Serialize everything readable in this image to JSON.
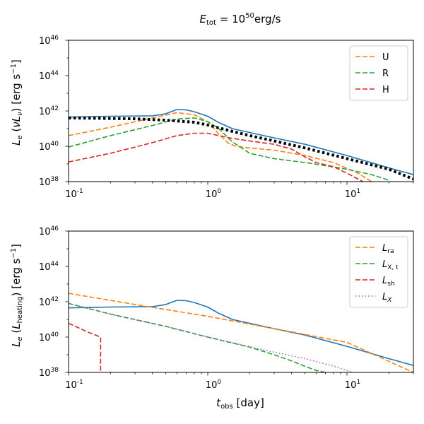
{
  "title": "E_tot = 10^50 erg/s",
  "title_parts": {
    "lhs": "E",
    "lhs_sub": "tot",
    "eq": " = 10",
    "exp": "50",
    "unit": "erg/s"
  },
  "chart_data": [
    {
      "type": "line",
      "panel": "top",
      "xscale": "log",
      "yscale": "log",
      "xlim": [
        0.1,
        30
      ],
      "ylim": [
        1e+38,
        1e+46
      ],
      "ylabel": "L_e (νL_ν) [erg s^-1]",
      "xticks": [
        0.1,
        1,
        10
      ],
      "yticks": [
        1e+38,
        1e+40,
        1e+42,
        1e+44,
        1e+46
      ],
      "legend": "top-right",
      "series": [
        {
          "name": "total",
          "color": "#1f77b4",
          "style": "solid",
          "in_legend": false,
          "x": [
            0.1,
            0.2,
            0.4,
            0.5,
            0.6,
            0.7,
            0.8,
            1.0,
            1.2,
            1.5,
            2.0,
            3.0,
            5.0,
            10.0,
            20.0,
            30.0
          ],
          "y": [
            4.5e+41,
            5e+41,
            5.3e+41,
            7e+41,
            1.2e+42,
            1.15e+42,
            9e+41,
            5e+41,
            2.2e+41,
            1e+41,
            6e+40,
            3e+40,
            1.3e+40,
            3e+39,
            6e+38,
            2.5e+38
          ]
        },
        {
          "name": "U",
          "color": "#ff7f0e",
          "style": "dashed",
          "in_legend": true,
          "x": [
            0.1,
            0.2,
            0.4,
            0.6,
            0.8,
            1.0,
            1.2,
            1.4,
            1.6,
            2.0,
            3.0,
            5.0,
            8.0,
            12.0,
            15.0
          ],
          "y": [
            4e+40,
            1.2e+41,
            4e+41,
            8e+41,
            6e+41,
            2.5e+41,
            5e+40,
            1.5e+40,
            1e+40,
            8e+39,
            6e+39,
            3e+39,
            1.2e+39,
            3e+38,
            1e+38
          ]
        },
        {
          "name": "R",
          "color": "#2ca02c",
          "style": "dashed",
          "in_legend": true,
          "x": [
            0.1,
            0.2,
            0.4,
            0.6,
            0.8,
            1.0,
            1.2,
            1.5,
            2.0,
            3.0,
            4.0,
            5.0,
            7.0,
            10.0,
            15.0,
            20.0
          ],
          "y": [
            9e+39,
            4e+40,
            1.5e+41,
            3.5e+41,
            4e+41,
            2.5e+41,
            1e+41,
            1.8e+40,
            4e+39,
            2e+39,
            1.5e+39,
            1.2e+39,
            8e+38,
            5e+38,
            2.5e+38,
            1.2e+38
          ]
        },
        {
          "name": "H",
          "color": "#d62728",
          "style": "dashed",
          "in_legend": true,
          "x": [
            0.1,
            0.2,
            0.4,
            0.6,
            0.8,
            1.0,
            1.2,
            1.5,
            2.0,
            3.0,
            4.0,
            5.0,
            6.0,
            8.0,
            10.0,
            13.0
          ],
          "y": [
            1.3e+39,
            4e+39,
            1.6e+40,
            4e+40,
            5.5e+40,
            5.5e+40,
            4e+40,
            2.8e+40,
            2e+40,
            1.3e+40,
            7e+39,
            2.5e+39,
            1.2e+39,
            7e+38,
            3e+38,
            1e+38
          ]
        },
        {
          "name": "black dotted",
          "color": "#000000",
          "style": "dotted-thick",
          "in_legend": false,
          "x": [
            0.1,
            0.3,
            0.5,
            0.8,
            1.0,
            1.5,
            2.0,
            3.0,
            5.0,
            10.0,
            20.0,
            30.0
          ],
          "y": [
            4e+41,
            3.6e+41,
            3e+41,
            2.3e+41,
            1.6e+41,
            7e+40,
            4e+40,
            2e+40,
            8e+39,
            2e+39,
            5e+38,
            1.4e+38
          ]
        }
      ]
    },
    {
      "type": "line",
      "panel": "bottom",
      "xscale": "log",
      "yscale": "log",
      "xlim": [
        0.1,
        30
      ],
      "ylim": [
        1e+38,
        1e+46
      ],
      "xlabel": "t_obs [day]",
      "ylabel": "L_e (L_heating) [erg s^-1]",
      "xticks": [
        0.1,
        1,
        10
      ],
      "yticks": [
        1e+38,
        1e+40,
        1e+42,
        1e+44,
        1e+46
      ],
      "legend": "top-right",
      "series": [
        {
          "name": "total",
          "color": "#1f77b4",
          "style": "solid",
          "in_legend": false,
          "x": [
            0.1,
            0.2,
            0.4,
            0.5,
            0.6,
            0.7,
            0.8,
            1.0,
            1.2,
            1.5,
            2.0,
            3.0,
            5.0,
            10.0,
            20.0,
            30.0
          ],
          "y": [
            4.5e+41,
            5e+41,
            5.3e+41,
            7e+41,
            1.2e+42,
            1.15e+42,
            9e+41,
            5e+41,
            2.2e+41,
            1e+41,
            6e+40,
            3e+40,
            1.3e+40,
            3e+39,
            6e+38,
            2.5e+38
          ]
        },
        {
          "name": "L_ra",
          "color": "#ff7f0e",
          "style": "dashed",
          "in_legend": true,
          "x": [
            0.1,
            0.3,
            1.0,
            3.0,
            10.0,
            30.0
          ],
          "y": [
            3e+42,
            7e+41,
            1.5e+41,
            3e+40,
            5e+39,
            1e+38
          ]
        },
        {
          "name": "L_X,t",
          "color": "#2ca02c",
          "style": "dashed",
          "in_legend": true,
          "x": [
            0.1,
            0.2,
            0.5,
            1.0,
            2.0,
            3.0,
            4.0,
            5.0,
            6.0,
            7.0
          ],
          "y": [
            8e+41,
            2e+41,
            4e+40,
            1e+40,
            2.7e+39,
            1e+39,
            4.5e+38,
            2.2e+38,
            1.3e+38,
            1e+38
          ]
        },
        {
          "name": "L_sh",
          "color": "#d62728",
          "style": "dashed",
          "in_legend": true,
          "x": [
            0.1,
            0.14,
            0.17,
            0.17,
            0.17
          ],
          "y": [
            6e+40,
            1.8e+40,
            1e+40,
            1e+39,
            1e+38
          ]
        },
        {
          "name": "L_X",
          "color": "#9467bd",
          "style": "dotted",
          "in_legend": true,
          "x": [
            0.1,
            0.2,
            0.5,
            1.0,
            2.0,
            3.0,
            5.0,
            8.0,
            11.0
          ],
          "y": [
            8e+41,
            2e+41,
            4e+40,
            1e+40,
            2.8e+39,
            1.4e+39,
            6e+38,
            2.3e+38,
            1e+38
          ]
        }
      ]
    }
  ]
}
